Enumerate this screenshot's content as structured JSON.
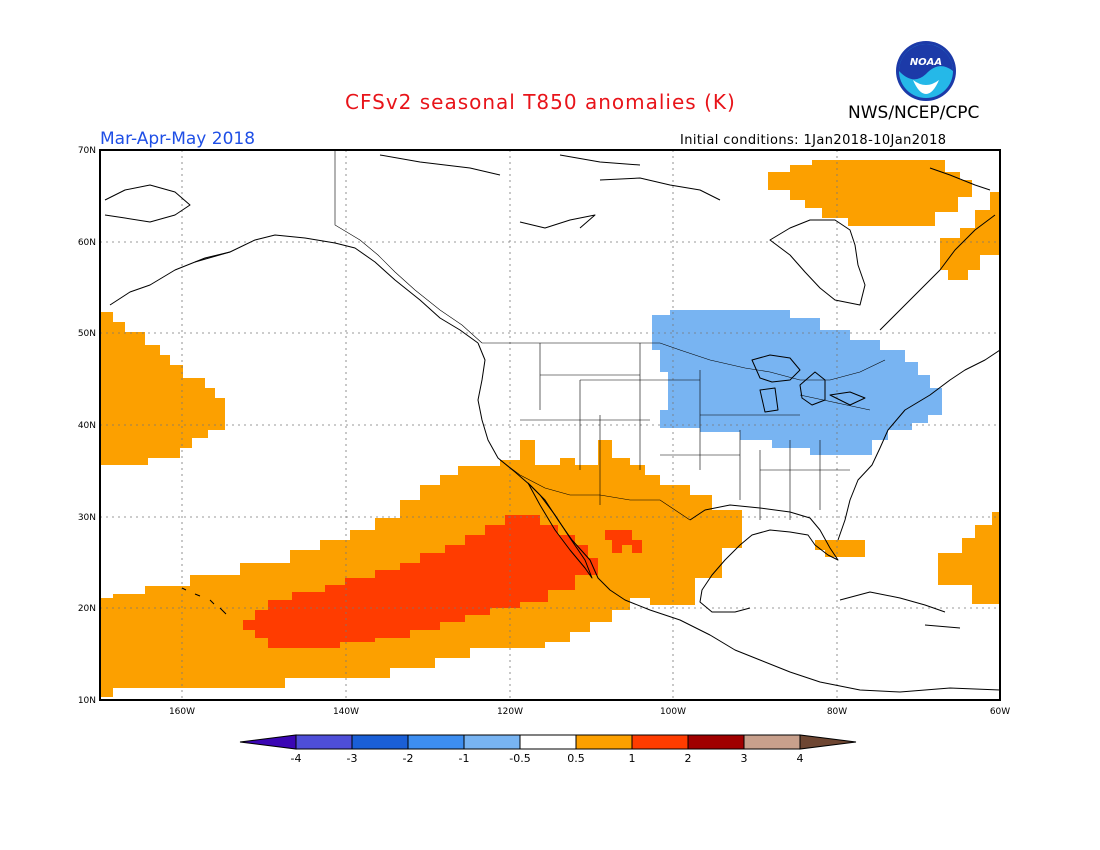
{
  "header": {
    "title": "CFSv2 seasonal T850 anomalies (K)",
    "agency": "NWS/NCEP/CPC",
    "season": "Mar-Apr-May 2018",
    "initial_conditions": "Initial conditions: 1Jan2018-10Jan2018",
    "logo_text": "NOAA"
  },
  "axes": {
    "lat_labels": [
      "70N",
      "60N",
      "50N",
      "40N",
      "30N",
      "20N",
      "10N"
    ],
    "lon_labels": [
      "160W",
      "140W",
      "120W",
      "100W",
      "80W",
      "60W"
    ]
  },
  "colorbar": {
    "labels": [
      "-4",
      "-3",
      "-2",
      "-1",
      "-0.5",
      "0.5",
      "1",
      "2",
      "3",
      "4"
    ],
    "colors": [
      "#3b06b4",
      "#4e4ed8",
      "#1a5fd6",
      "#3d8ef0",
      "#78b4f2",
      "#ffffff",
      "#fca000",
      "#ff3c00",
      "#a00000",
      "#c8a08c",
      "#6e4632"
    ]
  },
  "anomaly_colors": {
    "cold": "#78b4f2",
    "warm": "#fca000",
    "hot": "#ff3c00"
  }
}
